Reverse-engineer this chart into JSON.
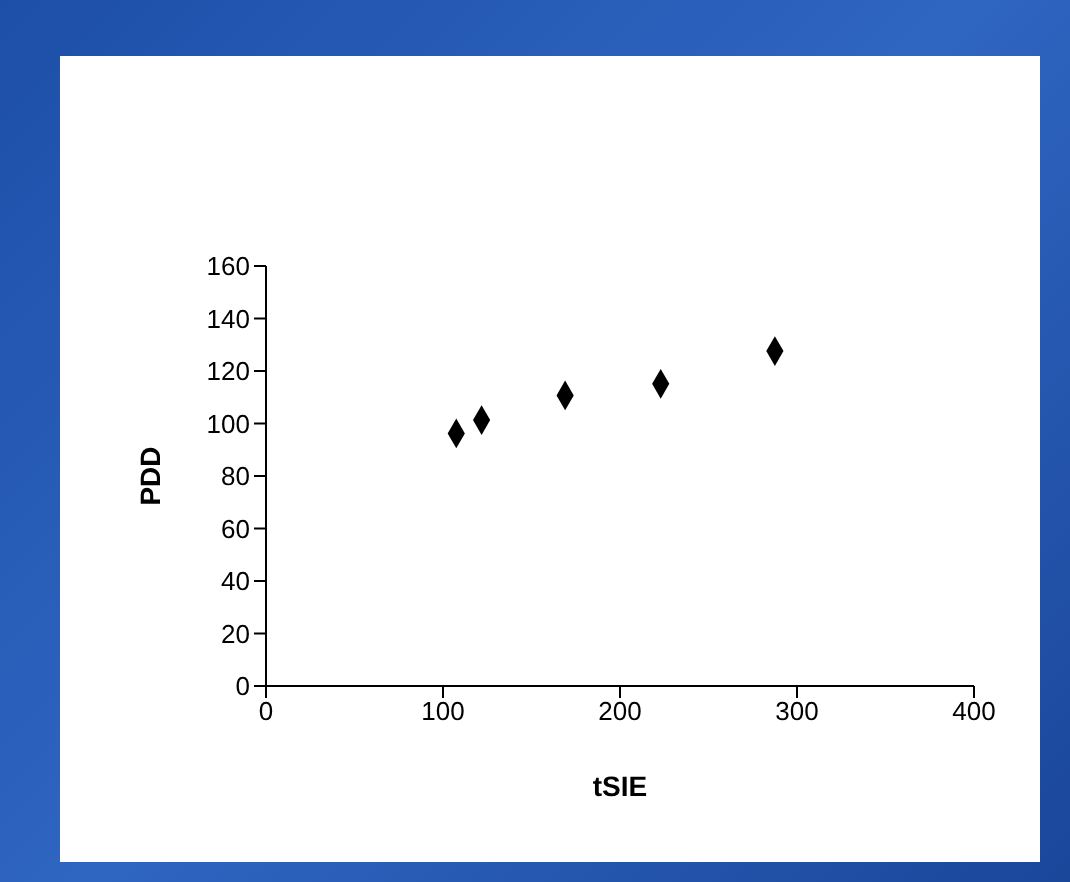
{
  "chart_data": {
    "type": "scatter",
    "xlabel": "tSIE",
    "ylabel": "PDD",
    "x": [
      107.5,
      121.8,
      169,
      223,
      287.5
    ],
    "values": [
      96.2,
      101.3,
      110.7,
      115.1,
      127.6
    ],
    "color": "#000000",
    "marker": "diamond",
    "grid": false,
    "legend": false,
    "xlim": [
      0,
      400
    ],
    "xticks": [
      0,
      100,
      200,
      300,
      400
    ],
    "ylim": [
      0,
      160
    ],
    "yticks": [
      0,
      20,
      40,
      60,
      80,
      100,
      120,
      140,
      160
    ]
  }
}
